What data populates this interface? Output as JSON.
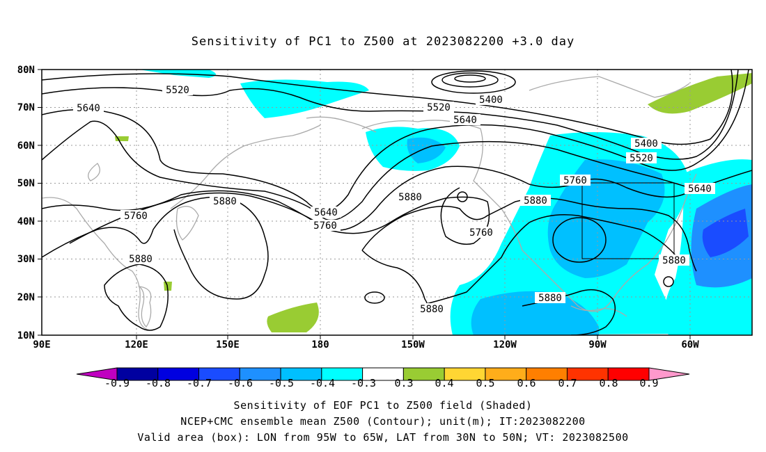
{
  "title": "Sensitivity of PC1 to Z500 at 2023082200 +3.0 day",
  "map": {
    "lat_labels": [
      "80N",
      "70N",
      "60N",
      "50N",
      "40N",
      "30N",
      "20N",
      "10N"
    ],
    "lon_labels": [
      "90E",
      "120E",
      "150E",
      "180",
      "150W",
      "120W",
      "90W",
      "60W"
    ],
    "contour_labels": [
      "5520",
      "5640",
      "5400",
      "5520",
      "5640",
      "5400",
      "5520",
      "5760",
      "5640",
      "5880",
      "5880",
      "5640",
      "5760",
      "5880",
      "5760",
      "5760",
      "5880",
      "5880",
      "5880",
      "5880"
    ],
    "valid_box": {
      "lon_from": "95W",
      "lon_to": "65W",
      "lat_from": "30N",
      "lat_to": "50N"
    }
  },
  "colorbar": {
    "labels": [
      "-0.9",
      "-0.8",
      "-0.7",
      "-0.6",
      "-0.5",
      "-0.4",
      "-0.3",
      "0.3",
      "0.4",
      "0.5",
      "0.6",
      "0.7",
      "0.8",
      "0.9"
    ],
    "colors": [
      "#0000a0",
      "#0000e0",
      "#1a4cff",
      "#1e90ff",
      "#00c0ff",
      "#00ffff",
      "#ffffff",
      "#99cc33",
      "#ffd633",
      "#ffad1a",
      "#ff7f00",
      "#ff3300",
      "#ff0000"
    ],
    "end_low_color": "#c000c0",
    "end_high_color": "#ff99cc"
  },
  "captions": {
    "line1": "Sensitivity of EOF PC1 to Z500 field (Shaded)",
    "line2": "NCEP+CMC ensemble mean Z500 (Contour); unit(m); IT:2023082200",
    "line3": "Valid area (box): LON from 95W to 65W, LAT from 30N to 50N; VT: 2023082500"
  }
}
